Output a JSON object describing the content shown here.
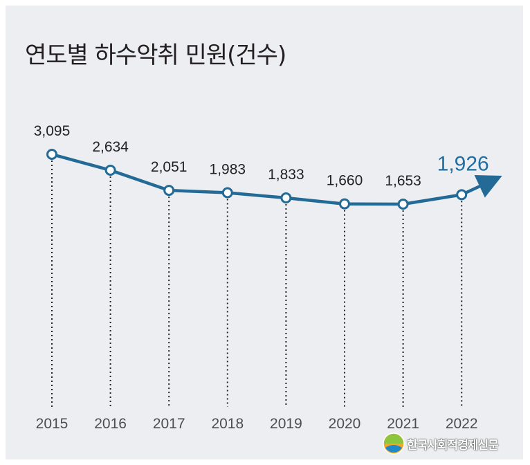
{
  "chart_data": {
    "type": "line",
    "title": "연도별 하수악취 민원(건수)",
    "x": [
      "2015",
      "2016",
      "2017",
      "2018",
      "2019",
      "2020",
      "2021",
      "2022"
    ],
    "values": [
      3095,
      2634,
      2051,
      1983,
      1833,
      1660,
      1653,
      1926
    ],
    "value_labels": [
      "3,095",
      "2,634",
      "2,051",
      "1,983",
      "1,833",
      "1,660",
      "1,653",
      "1,926"
    ],
    "highlight_index": 7,
    "trend_arrow": true,
    "grid": false,
    "y_axis_visible": false
  },
  "colors": {
    "background": "#eceef1",
    "line": "#236b96",
    "point_fill": "#ffffff",
    "highlight_label": "#1f6ea1",
    "label": "#222222",
    "axis_label": "#4d4d4d",
    "dotted_guide": "#222222"
  },
  "watermark": {
    "text": "한국사회적경제신문",
    "icon": "globe-logo-icon"
  }
}
